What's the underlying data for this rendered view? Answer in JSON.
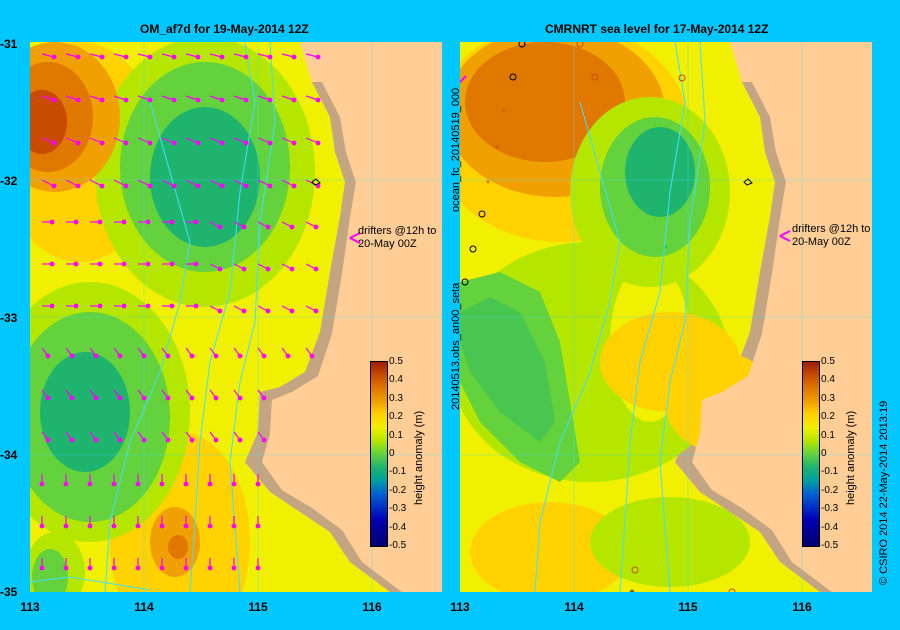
{
  "left_panel": {
    "title": "OM_af7d for 19-May-2014 12Z",
    "annotation_line1": "drifters @12h to",
    "annotation_line2": "20-May 00Z"
  },
  "right_panel": {
    "title": "CMRNRT sea level  for 17-May-2014 12Z",
    "annotation_line1": "drifters @12h to",
    "annotation_line2": "20-May 00Z",
    "side_label_top": "ocean_fc_20140519_000",
    "side_label_bottom": "20140513.obs_an00_seta"
  },
  "y_axis": {
    "ticks": [
      "-31",
      "-32",
      "-33",
      "-34",
      "-35"
    ]
  },
  "x_axis_left": {
    "ticks": [
      "113",
      "114",
      "115",
      "116"
    ]
  },
  "x_axis_right": {
    "ticks": [
      "113",
      "114",
      "115",
      "116"
    ]
  },
  "colorbar": {
    "label": "height anomaly (m)",
    "ticks": [
      "0.5",
      "0.4",
      "0.3",
      "0.2",
      "0.1",
      "0",
      "-0.1",
      "-0.2",
      "-0.3",
      "-0.4",
      "-0.5"
    ],
    "colors": [
      "#a01e00",
      "#c84b00",
      "#e07800",
      "#f0a000",
      "#ffd200",
      "#f0f000",
      "#b4e600",
      "#64d23c",
      "#1eb46e",
      "#00a0a0",
      "#0064d2",
      "#0032c8",
      "#0000b4",
      "#000090",
      "#000070"
    ]
  },
  "credit": "© CSIRO 2014   22-May-2014 2013:19",
  "colors": {
    "land": "#ffcd96",
    "shelf": "#c3a582",
    "background": "#00c8ff",
    "arrow": "#ff00ff",
    "contour": "#40e0ff"
  }
}
